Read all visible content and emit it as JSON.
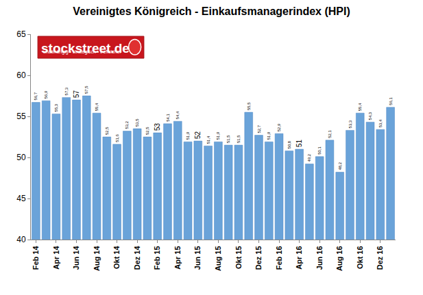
{
  "chart_data": {
    "type": "bar",
    "title": "Vereinigtes Königreich - Einkaufsmanagerindex (HPI)",
    "annotations": [
      "stockstreet.de",
      "unabhängig • strategisch • treffsicher"
    ],
    "categories": [
      "Feb 14",
      null,
      "Apr 14",
      null,
      "Jun 14",
      null,
      "Aug 14",
      null,
      "Okt 14",
      null,
      "Dez 14",
      null,
      "Feb 15",
      null,
      "Apr 15",
      null,
      "Jun 15",
      null,
      "Aug 15",
      null,
      "Okt 15",
      null,
      "Dez 15",
      null,
      "Feb 16",
      null,
      "Apr 16",
      null,
      "Jun 16",
      null,
      "Aug 16",
      null,
      "Okt 16",
      null,
      "Dez 16",
      null
    ],
    "values": [
      56.7,
      56.9,
      55.3,
      57.3,
      57,
      57.5,
      55.4,
      52.5,
      51.6,
      53.2,
      53.5,
      52.5,
      53,
      54.1,
      54.4,
      51.9,
      52,
      51.4,
      51.9,
      51.5,
      51.5,
      55.5,
      52.7,
      51.9,
      52.9,
      50.8,
      51,
      49.2,
      50.1,
      52.1,
      48.2,
      53.3,
      55.4,
      54.3,
      53.4,
      56.1
    ],
    "value_labels": [
      "56,7",
      "56,9",
      "55,3",
      "57,3",
      "57",
      "57,5",
      "55,4",
      "52,5",
      "51,6",
      "53,2",
      "53,5",
      "52,5",
      "53",
      "54,1",
      "54,4",
      "51,9",
      "52",
      "51,4",
      "51,9",
      "51,5",
      "51,5",
      "55,5",
      "52,7",
      "51,9",
      "52,9",
      "50,8",
      "51",
      "49,2",
      "50,1",
      "52,1",
      "48,2",
      "53,3",
      "55,4",
      "54,3",
      "53,4",
      "56,1"
    ],
    "color": "#6aa3d9",
    "ylim": [
      40,
      65
    ],
    "yticks": [
      40,
      45,
      50,
      55,
      60,
      65
    ],
    "grid": false,
    "data_labels": true
  }
}
